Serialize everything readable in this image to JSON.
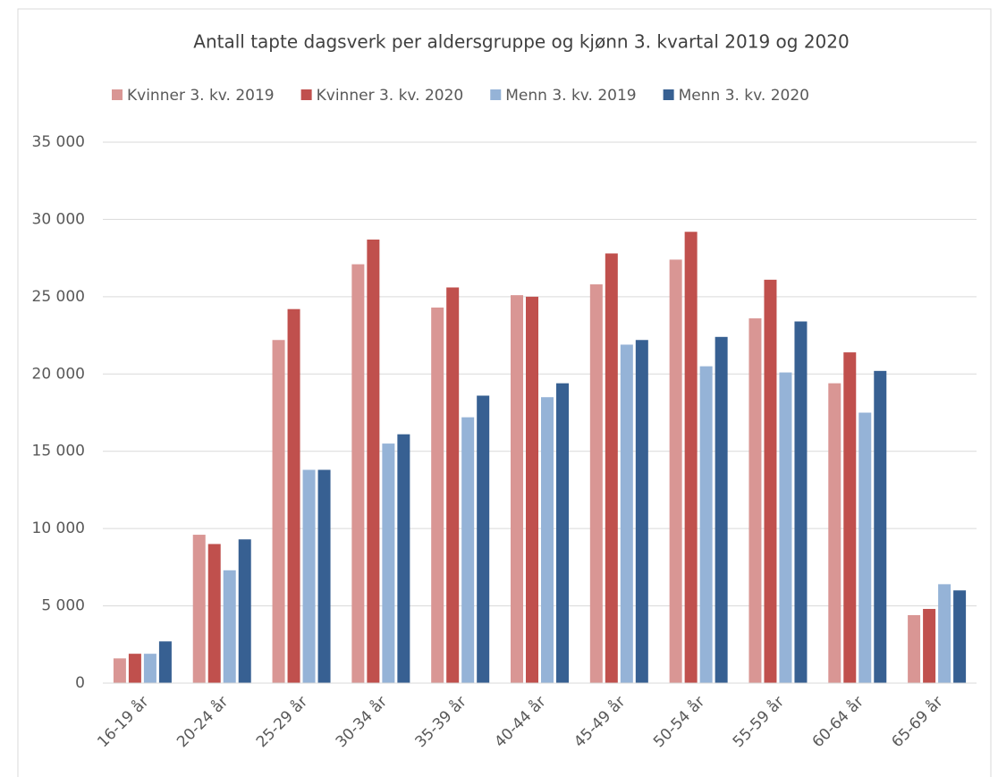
{
  "chart_data": {
    "type": "bar",
    "title": "Antall tapte dagsverk per aldersgruppe og kjønn 3. kvartal 2019 og 2020",
    "categories": [
      "16-19 år",
      "20-24 år",
      "25-29 år",
      "30-34 år",
      "35-39 år",
      "40-44 år",
      "45-49 år",
      "50-54 år",
      "55-59 år",
      "60-64 år",
      "65-69 år"
    ],
    "series": [
      {
        "name": "Kvinner 3. kv. 2019",
        "color": "#d99694",
        "values": [
          1600,
          9600,
          22200,
          27100,
          24300,
          25100,
          25800,
          27400,
          23600,
          19400,
          4400
        ]
      },
      {
        "name": "Kvinner 3. kv. 2020",
        "color": "#c0504d",
        "values": [
          1900,
          9000,
          24200,
          28700,
          25600,
          25000,
          27800,
          29200,
          26100,
          21400,
          4800
        ]
      },
      {
        "name": "Menn 3. kv. 2019",
        "color": "#95b3d7",
        "values": [
          1900,
          7300,
          13800,
          15500,
          17200,
          18500,
          21900,
          20500,
          20100,
          17500,
          6400
        ]
      },
      {
        "name": "Menn 3. kv. 2020",
        "color": "#376092",
        "values": [
          2700,
          9300,
          13800,
          16100,
          18600,
          19400,
          22200,
          22400,
          23400,
          20200,
          6000
        ]
      }
    ],
    "ylim": [
      0,
      35000
    ],
    "yticks": [
      0,
      {
        "value": 5000,
        "label": "5 000"
      },
      {
        "value": 10000,
        "label": "10 000"
      },
      {
        "value": 15000,
        "label": "15 000"
      },
      {
        "value": 20000,
        "label": "20 000"
      },
      {
        "value": 25000,
        "label": "25 000"
      },
      {
        "value": 30000,
        "label": "30 000"
      },
      {
        "value": 35000,
        "label": "35 000"
      }
    ],
    "grid": true,
    "legend": "top"
  }
}
